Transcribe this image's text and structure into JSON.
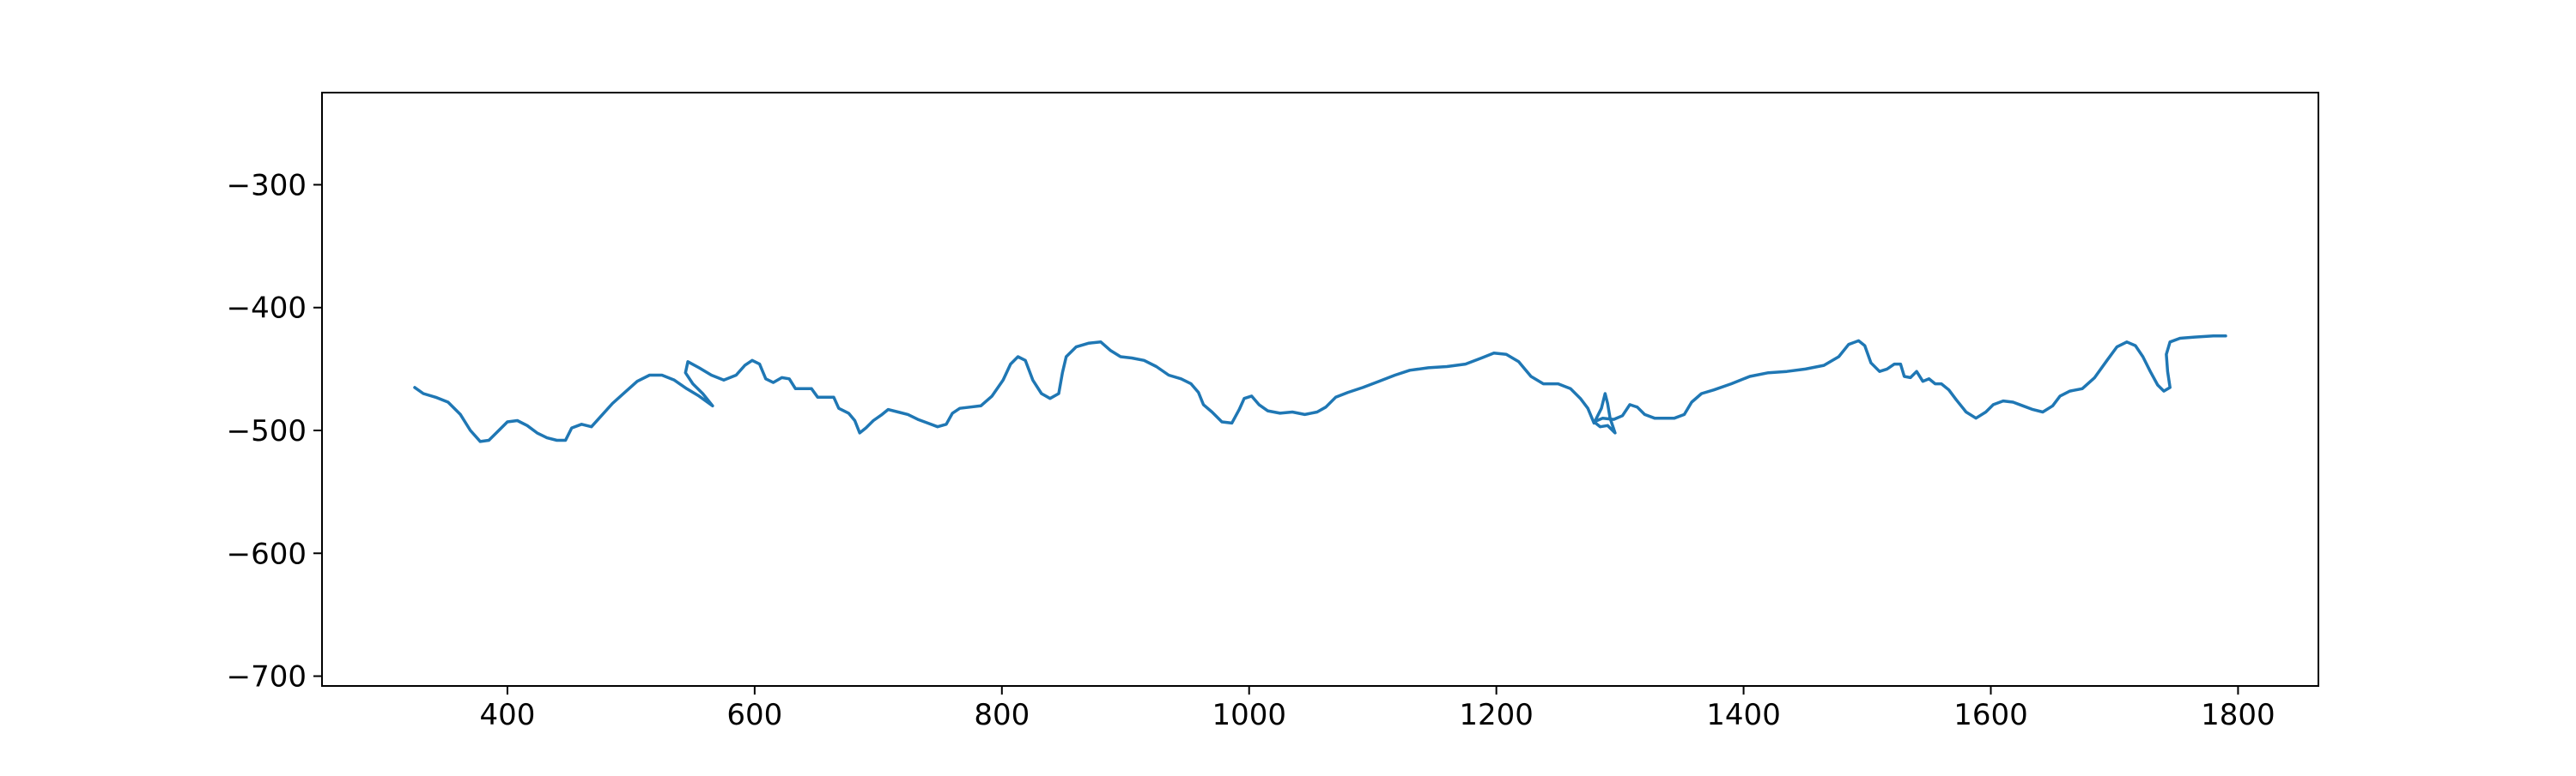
{
  "chart_data": {
    "type": "line",
    "title": "",
    "xlabel": "",
    "ylabel": "",
    "xlim": [
      250,
      1865
    ],
    "ylim": [
      -708,
      -225
    ],
    "x_ticks": [
      400,
      600,
      800,
      1000,
      1200,
      1400,
      1600,
      1800
    ],
    "y_ticks": [
      -300,
      -400,
      -500,
      -600,
      -700
    ],
    "x_tick_labels": [
      "400",
      "600",
      "800",
      "1000",
      "1200",
      "1400",
      "1600",
      "1800"
    ],
    "y_tick_labels": [
      "−300",
      "−400",
      "−500",
      "−600",
      "−700"
    ],
    "grid": false,
    "legend": "none",
    "series": [
      {
        "color": "#1f77b4",
        "points": [
          [
            325,
            -465
          ],
          [
            332,
            -470
          ],
          [
            342,
            -473
          ],
          [
            352,
            -477
          ],
          [
            362,
            -487
          ],
          [
            370,
            -500
          ],
          [
            378,
            -509
          ],
          [
            385,
            -508
          ],
          [
            393,
            -500
          ],
          [
            400,
            -493
          ],
          [
            408,
            -492
          ],
          [
            416,
            -496
          ],
          [
            424,
            -502
          ],
          [
            432,
            -506
          ],
          [
            440,
            -508
          ],
          [
            447,
            -508
          ],
          [
            452,
            -498
          ],
          [
            460,
            -495
          ],
          [
            468,
            -497
          ],
          [
            476,
            -488
          ],
          [
            485,
            -478
          ],
          [
            495,
            -469
          ],
          [
            505,
            -460
          ],
          [
            515,
            -455
          ],
          [
            525,
            -455
          ],
          [
            535,
            -459
          ],
          [
            545,
            -466
          ],
          [
            555,
            -472
          ],
          [
            566,
            -480
          ],
          [
            558,
            -470
          ],
          [
            550,
            -462
          ],
          [
            544,
            -453
          ],
          [
            546,
            -444
          ],
          [
            555,
            -449
          ],
          [
            565,
            -455
          ],
          [
            575,
            -459
          ],
          [
            585,
            -455
          ],
          [
            592,
            -447
          ],
          [
            598,
            -443
          ],
          [
            604,
            -446
          ],
          [
            609,
            -458
          ],
          [
            615,
            -461
          ],
          [
            622,
            -457
          ],
          [
            628,
            -458
          ],
          [
            633,
            -466
          ],
          [
            640,
            -466
          ],
          [
            646,
            -466
          ],
          [
            651,
            -473
          ],
          [
            658,
            -473
          ],
          [
            664,
            -473
          ],
          [
            668,
            -482
          ],
          [
            676,
            -486
          ],
          [
            681,
            -492
          ],
          [
            685,
            -502
          ],
          [
            690,
            -498
          ],
          [
            696,
            -492
          ],
          [
            703,
            -487
          ],
          [
            708,
            -483
          ],
          [
            716,
            -485
          ],
          [
            724,
            -487
          ],
          [
            732,
            -491
          ],
          [
            740,
            -494
          ],
          [
            748,
            -497
          ],
          [
            755,
            -495
          ],
          [
            760,
            -486
          ],
          [
            766,
            -482
          ],
          [
            774,
            -481
          ],
          [
            783,
            -480
          ],
          [
            792,
            -472
          ],
          [
            801,
            -459
          ],
          [
            807,
            -446
          ],
          [
            813,
            -440
          ],
          [
            819,
            -443
          ],
          [
            825,
            -459
          ],
          [
            832,
            -470
          ],
          [
            839,
            -474
          ],
          [
            846,
            -470
          ],
          [
            849,
            -453
          ],
          [
            852,
            -440
          ],
          [
            860,
            -432
          ],
          [
            870,
            -429
          ],
          [
            880,
            -428
          ],
          [
            888,
            -435
          ],
          [
            896,
            -440
          ],
          [
            905,
            -441
          ],
          [
            915,
            -443
          ],
          [
            925,
            -448
          ],
          [
            935,
            -455
          ],
          [
            945,
            -458
          ],
          [
            953,
            -462
          ],
          [
            959,
            -469
          ],
          [
            963,
            -479
          ],
          [
            970,
            -485
          ],
          [
            978,
            -493
          ],
          [
            986,
            -494
          ],
          [
            992,
            -483
          ],
          [
            996,
            -474
          ],
          [
            1002,
            -472
          ],
          [
            1008,
            -479
          ],
          [
            1015,
            -484
          ],
          [
            1025,
            -486
          ],
          [
            1035,
            -485
          ],
          [
            1045,
            -487
          ],
          [
            1055,
            -485
          ],
          [
            1062,
            -481
          ],
          [
            1070,
            -473
          ],
          [
            1080,
            -469
          ],
          [
            1092,
            -465
          ],
          [
            1105,
            -460
          ],
          [
            1118,
            -455
          ],
          [
            1130,
            -451
          ],
          [
            1145,
            -449
          ],
          [
            1160,
            -448
          ],
          [
            1175,
            -446
          ],
          [
            1188,
            -441
          ],
          [
            1198,
            -437
          ],
          [
            1208,
            -438
          ],
          [
            1218,
            -444
          ],
          [
            1228,
            -456
          ],
          [
            1238,
            -462
          ],
          [
            1250,
            -462
          ],
          [
            1260,
            -466
          ],
          [
            1268,
            -474
          ],
          [
            1274,
            -482
          ],
          [
            1279,
            -494
          ],
          [
            1285,
            -482
          ],
          [
            1288,
            -470
          ],
          [
            1290,
            -478
          ],
          [
            1292,
            -490
          ],
          [
            1296,
            -502
          ],
          [
            1290,
            -496
          ],
          [
            1284,
            -497
          ],
          [
            1279,
            -493
          ],
          [
            1286,
            -490
          ],
          [
            1295,
            -491
          ],
          [
            1302,
            -488
          ],
          [
            1308,
            -479
          ],
          [
            1314,
            -481
          ],
          [
            1320,
            -487
          ],
          [
            1328,
            -490
          ],
          [
            1336,
            -490
          ],
          [
            1344,
            -490
          ],
          [
            1352,
            -487
          ],
          [
            1358,
            -477
          ],
          [
            1366,
            -470
          ],
          [
            1376,
            -467
          ],
          [
            1390,
            -462
          ],
          [
            1405,
            -456
          ],
          [
            1420,
            -453
          ],
          [
            1435,
            -452
          ],
          [
            1450,
            -450
          ],
          [
            1465,
            -447
          ],
          [
            1477,
            -440
          ],
          [
            1485,
            -430
          ],
          [
            1493,
            -427
          ],
          [
            1498,
            -431
          ],
          [
            1503,
            -445
          ],
          [
            1510,
            -452
          ],
          [
            1516,
            -450
          ],
          [
            1522,
            -446
          ],
          [
            1527,
            -446
          ],
          [
            1530,
            -456
          ],
          [
            1535,
            -457
          ],
          [
            1540,
            -452
          ],
          [
            1545,
            -460
          ],
          [
            1550,
            -458
          ],
          [
            1555,
            -462
          ],
          [
            1560,
            -462
          ],
          [
            1566,
            -467
          ],
          [
            1572,
            -475
          ],
          [
            1580,
            -485
          ],
          [
            1588,
            -490
          ],
          [
            1596,
            -485
          ],
          [
            1602,
            -479
          ],
          [
            1610,
            -476
          ],
          [
            1618,
            -477
          ],
          [
            1626,
            -480
          ],
          [
            1634,
            -483
          ],
          [
            1642,
            -485
          ],
          [
            1650,
            -480
          ],
          [
            1656,
            -472
          ],
          [
            1664,
            -468
          ],
          [
            1674,
            -466
          ],
          [
            1684,
            -457
          ],
          [
            1694,
            -443
          ],
          [
            1702,
            -432
          ],
          [
            1710,
            -428
          ],
          [
            1717,
            -431
          ],
          [
            1723,
            -440
          ],
          [
            1729,
            -452
          ],
          [
            1735,
            -463
          ],
          [
            1740,
            -468
          ],
          [
            1745,
            -465
          ],
          [
            1743,
            -452
          ],
          [
            1742,
            -438
          ],
          [
            1745,
            -428
          ],
          [
            1753,
            -425
          ],
          [
            1765,
            -424
          ],
          [
            1780,
            -423
          ],
          [
            1790,
            -423
          ]
        ]
      }
    ]
  }
}
